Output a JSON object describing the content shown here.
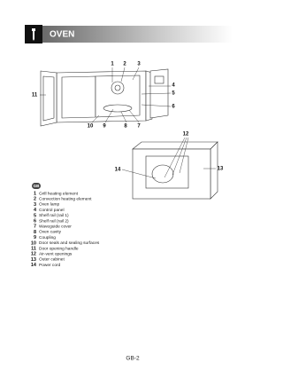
{
  "header": {
    "title": "OVEN"
  },
  "figure_1": {
    "callouts": [
      "1",
      "2",
      "3",
      "4",
      "5",
      "6",
      "7",
      "8",
      "9",
      "10",
      "11"
    ]
  },
  "figure_2": {
    "callouts": [
      "12",
      "13",
      "14"
    ]
  },
  "legend": {
    "badge": "GB",
    "items": [
      {
        "number": "1",
        "label": "Grill heating element"
      },
      {
        "number": "2",
        "label": "Convection heating element"
      },
      {
        "number": "3",
        "label": "Oven lamp"
      },
      {
        "number": "4",
        "label": "Control panel"
      },
      {
        "number": "5",
        "label": "Shelf rail (rail 1)"
      },
      {
        "number": "6",
        "label": "Shelf rail (rail 2)"
      },
      {
        "number": "7",
        "label": "Waveguide cover"
      },
      {
        "number": "8",
        "label": "Oven cavity"
      },
      {
        "number": "9",
        "label": "Coupling"
      },
      {
        "number": "10",
        "label": "Door seals and sealing surfaces"
      },
      {
        "number": "11",
        "label": "Door opening handle"
      },
      {
        "number": "12",
        "label": "Air-vent openings"
      },
      {
        "number": "13",
        "label": "Outer cabinet"
      },
      {
        "number": "14",
        "label": "Power cord"
      }
    ]
  },
  "footer": {
    "page": "GB-2"
  }
}
